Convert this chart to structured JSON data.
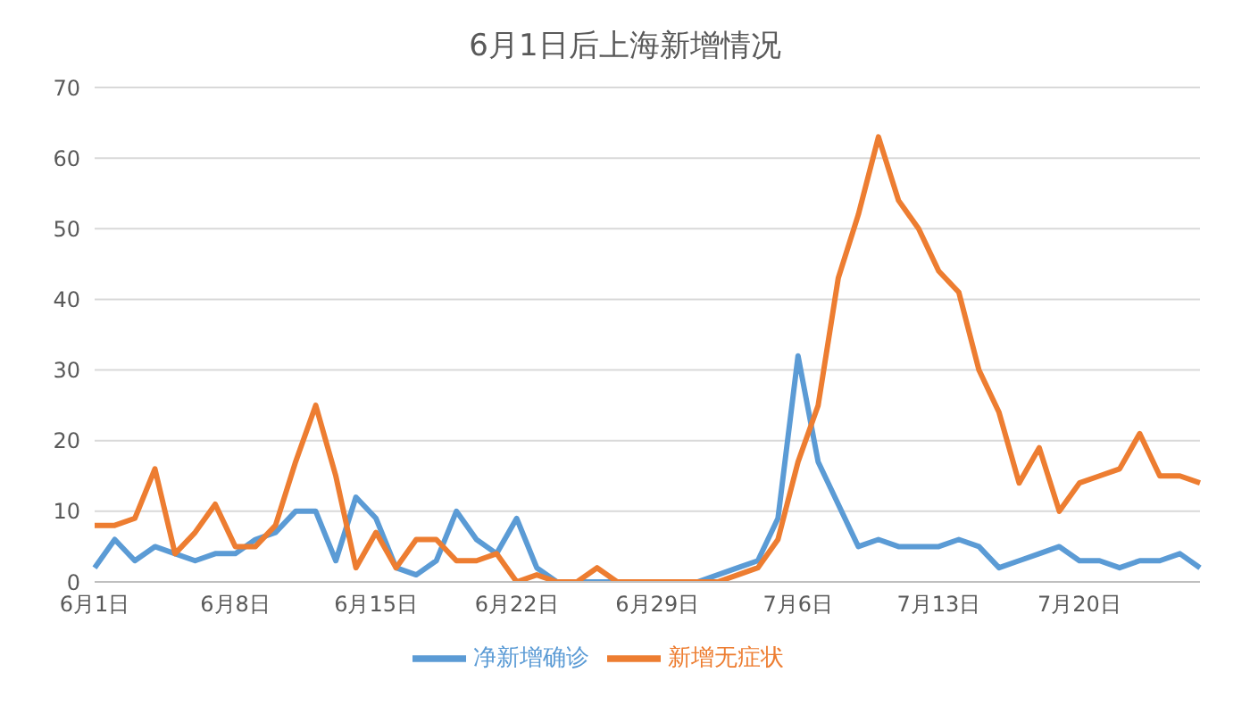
{
  "chart_data": {
    "type": "line",
    "title": "6月1日后上海新增情况",
    "categories": [
      "6月1日",
      null,
      null,
      null,
      null,
      null,
      null,
      "6月8日",
      null,
      null,
      null,
      null,
      null,
      null,
      "6月15日",
      null,
      null,
      null,
      null,
      null,
      null,
      "6月22日",
      null,
      null,
      null,
      null,
      null,
      null,
      "6月29日",
      null,
      null,
      null,
      null,
      null,
      null,
      "7月6日",
      null,
      null,
      null,
      null,
      null,
      null,
      "7月13日",
      null,
      null,
      null,
      null,
      null,
      null,
      "7月20日",
      null,
      null,
      null,
      null,
      null,
      null
    ],
    "series": [
      {
        "name": "净新增确诊",
        "color": "#5b9bd5",
        "values": [
          2,
          6,
          3,
          5,
          4,
          3,
          4,
          4,
          6,
          7,
          10,
          10,
          3,
          12,
          9,
          2,
          1,
          3,
          10,
          6,
          4,
          9,
          2,
          0,
          0,
          0,
          0,
          0,
          0,
          0,
          0,
          1,
          2,
          3,
          9,
          32,
          17,
          11,
          5,
          6,
          5,
          5,
          5,
          6,
          5,
          2,
          3,
          4,
          5,
          3,
          3,
          2,
          3,
          3,
          4,
          2
        ]
      },
      {
        "name": "新增无症状",
        "color": "#ed7d31",
        "values": [
          8,
          8,
          9,
          16,
          4,
          7,
          11,
          5,
          5,
          8,
          17,
          25,
          15,
          2,
          7,
          2,
          6,
          6,
          3,
          3,
          4,
          0,
          1,
          0,
          0,
          2,
          0,
          0,
          0,
          0,
          0,
          0,
          1,
          2,
          6,
          17,
          25,
          43,
          52,
          63,
          54,
          50,
          44,
          41,
          30,
          24,
          14,
          19,
          10,
          14,
          15,
          16,
          21,
          15,
          15,
          14
        ]
      }
    ],
    "ylim": [
      0,
      70
    ],
    "yticks": [
      0,
      10,
      20,
      30,
      40,
      50,
      60,
      70
    ],
    "grid": "y",
    "legend": "bottom",
    "marker": "none",
    "line_style": "solid"
  }
}
